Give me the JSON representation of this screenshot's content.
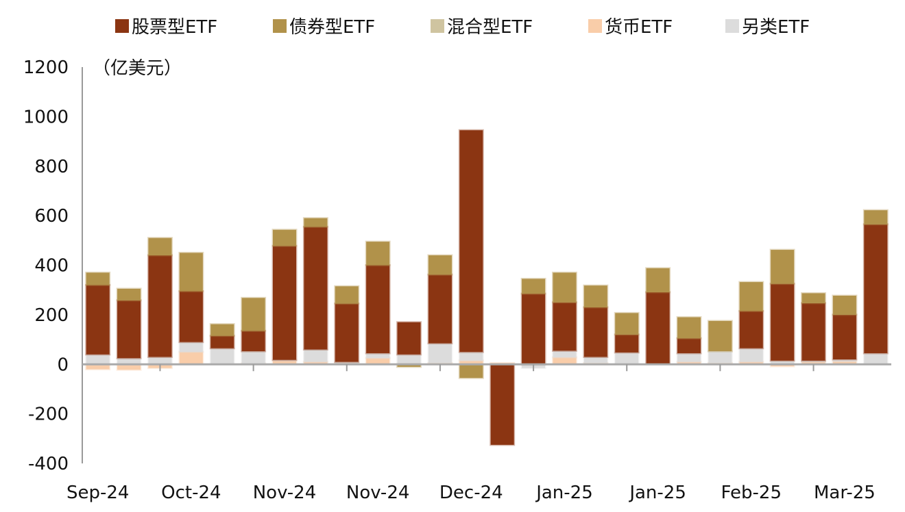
{
  "chart_data": {
    "type": "bar",
    "stacked": true,
    "unit_label": "（亿美元）",
    "ylim": [
      -400,
      1200
    ],
    "yticks": [
      -400,
      -200,
      0,
      200,
      400,
      600,
      800,
      1000,
      1200
    ],
    "grid": false,
    "legend_position": "top",
    "x_tick_labels": [
      "Sep-24",
      "Oct-24",
      "Nov-24",
      "Nov-24",
      "Dec-24",
      "Jan-25",
      "Jan-25",
      "Feb-25",
      "Mar-25"
    ],
    "series": [
      {
        "name": "股票型ETF",
        "color": "#8B3512",
        "values": [
          280,
          233,
          410,
          205,
          50,
          82,
          460,
          495,
          235,
          355,
          130,
          277,
          895,
          -325,
          285,
          195,
          200,
          72,
          288,
          60,
          0,
          150,
          310,
          232,
          180,
          520
        ]
      },
      {
        "name": "债券型ETF",
        "color": "#B1924A",
        "values": [
          50,
          47,
          70,
          155,
          47,
          133,
          65,
          35,
          70,
          95,
          -10,
          78,
          -55,
          0,
          60,
          120,
          88,
          87,
          97,
          85,
          122,
          117,
          137,
          40,
          77,
          57
        ]
      },
      {
        "name": "混合型ETF",
        "color": "#CFC4A0",
        "values": [
          0,
          0,
          0,
          0,
          0,
          0,
          0,
          0,
          0,
          0,
          0,
          0,
          0,
          0,
          0,
          0,
          0,
          0,
          0,
          0,
          0,
          0,
          0,
          0,
          0,
          0
        ]
      },
      {
        "name": "货币ETF",
        "color": "#F9CDA9",
        "values": [
          -20,
          -22,
          -15,
          50,
          0,
          3,
          15,
          10,
          5,
          25,
          0,
          5,
          15,
          5,
          0,
          28,
          5,
          0,
          0,
          10,
          5,
          10,
          -8,
          10,
          12,
          0
        ]
      },
      {
        "name": "另类ETF",
        "color": "#DCDCDC",
        "values": [
          40,
          25,
          30,
          40,
          65,
          50,
          3,
          50,
          5,
          20,
          40,
          80,
          35,
          0,
          -15,
          27,
          25,
          48,
          3,
          35,
          48,
          55,
          15,
          5,
          8,
          45
        ]
      }
    ]
  }
}
